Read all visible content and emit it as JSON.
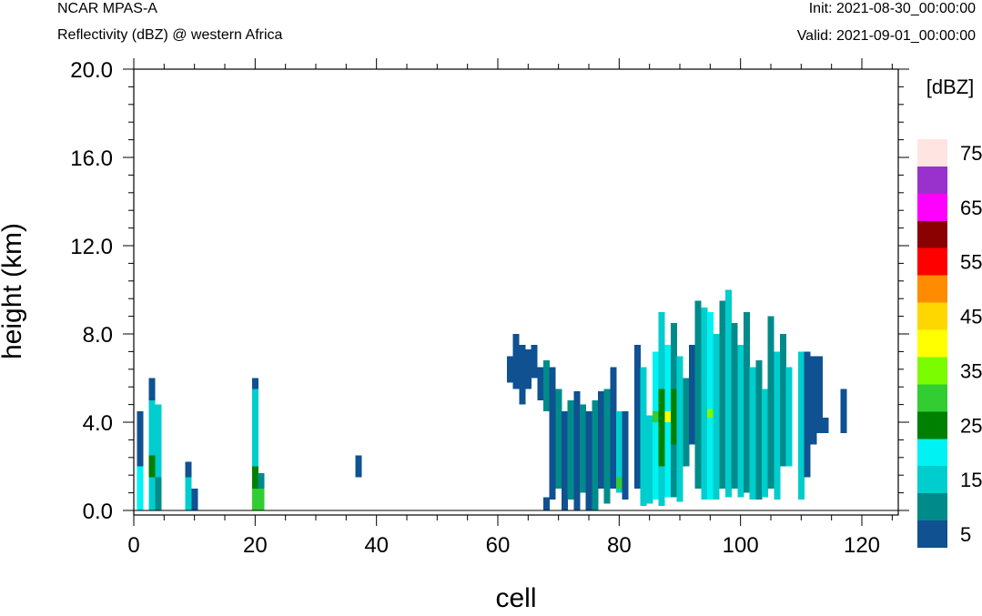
{
  "header": {
    "model": "NCAR MPAS-A",
    "field": "Reflectivity (dBZ) @ western Africa",
    "init": "Init: 2021-08-30_00:00:00",
    "valid": "Valid: 2021-09-01_00:00:00"
  },
  "chart_data": {
    "type": "heatmap",
    "xlabel": "cell",
    "ylabel": "height (km)",
    "xlim": [
      0,
      126
    ],
    "ylim": [
      -0.25,
      20.0
    ],
    "x_ticks": [
      0,
      20,
      40,
      60,
      80,
      100,
      120
    ],
    "x_tick_labels": [
      "0",
      "20",
      "40",
      "60",
      "80",
      "100",
      "120"
    ],
    "y_ticks": [
      0,
      4,
      8,
      12,
      16,
      20
    ],
    "y_tick_labels": [
      "0.0",
      "4.0",
      "8.0",
      "12.0",
      "16.0",
      "20.0"
    ],
    "colorbar": {
      "title": "[dBZ]",
      "levels": [
        5,
        10,
        15,
        20,
        25,
        30,
        35,
        40,
        45,
        50,
        55,
        60,
        65,
        70,
        75
      ],
      "labels": [
        "5",
        "15",
        "25",
        "35",
        "45",
        "55",
        "65",
        "75"
      ],
      "colors": [
        "#0f5191",
        "#008b8b",
        "#00cdcd",
        "#00f2f2",
        "#008000",
        "#32cd32",
        "#7cfc00",
        "#ffff00",
        "#ffd700",
        "#ff8c00",
        "#ff0000",
        "#8b0000",
        "#ff00ff",
        "#9932cc",
        "#ffe4e1"
      ]
    },
    "cells": [
      [
        1,
        0,
        2,
        20
      ],
      [
        1,
        2,
        4.5,
        5
      ],
      [
        3,
        0,
        1.5,
        15
      ],
      [
        3,
        1.5,
        2.5,
        25
      ],
      [
        3,
        2.5,
        5.0,
        15
      ],
      [
        3,
        5.0,
        6.0,
        5
      ],
      [
        4,
        0,
        1.5,
        10
      ],
      [
        4,
        1.5,
        4.8,
        15
      ],
      [
        9,
        0,
        1.5,
        15
      ],
      [
        9,
        1.5,
        2.2,
        5
      ],
      [
        10,
        0,
        1.0,
        5
      ],
      [
        20,
        0,
        1.0,
        30
      ],
      [
        20,
        1.0,
        2.0,
        25
      ],
      [
        20,
        2.0,
        5.5,
        15
      ],
      [
        20,
        5.5,
        6.0,
        5
      ],
      [
        21,
        0,
        1.0,
        30
      ],
      [
        21,
        1.0,
        1.7,
        10
      ],
      [
        37,
        1.5,
        2.5,
        5
      ],
      [
        62,
        5.8,
        7.0,
        5
      ],
      [
        63,
        5.5,
        8.0,
        5
      ],
      [
        64,
        4.8,
        7.5,
        5
      ],
      [
        65,
        5.5,
        7.3,
        5
      ],
      [
        66,
        6.0,
        7.5,
        5
      ],
      [
        67,
        5.0,
        6.5,
        5
      ],
      [
        68,
        4.5,
        6.8,
        10
      ],
      [
        68,
        0,
        0.6,
        5
      ],
      [
        69,
        4.0,
        6.5,
        5
      ],
      [
        69,
        0.5,
        4.5,
        5
      ],
      [
        70,
        1.0,
        5.5,
        10
      ],
      [
        71,
        0,
        4.5,
        5
      ],
      [
        72,
        0.5,
        5.0,
        10
      ],
      [
        73,
        0,
        5.4,
        5
      ],
      [
        74,
        0.8,
        4.8,
        10
      ],
      [
        75,
        0,
        4.5,
        5
      ],
      [
        76,
        0,
        5.0,
        10
      ],
      [
        77,
        1.0,
        5.4,
        5
      ],
      [
        78,
        0.3,
        5.5,
        10
      ],
      [
        79,
        1.0,
        6.5,
        5
      ],
      [
        80,
        0.8,
        4.5,
        15
      ],
      [
        80,
        1.0,
        1.5,
        30
      ],
      [
        81,
        0.5,
        4.5,
        5
      ],
      [
        83,
        1.0,
        7.5,
        5
      ],
      [
        84,
        0.2,
        6.5,
        15
      ],
      [
        85,
        0.3,
        4.3,
        15
      ],
      [
        86,
        0.5,
        7.2,
        20
      ],
      [
        86,
        4.0,
        4.5,
        30
      ],
      [
        87,
        0.2,
        9.0,
        15
      ],
      [
        87,
        2.0,
        5.5,
        25
      ],
      [
        88,
        0.6,
        7.5,
        20
      ],
      [
        88,
        4.0,
        4.5,
        40
      ],
      [
        89,
        0.6,
        8.5,
        10
      ],
      [
        89,
        3.0,
        5.5,
        25
      ],
      [
        90,
        0.4,
        7.0,
        15
      ],
      [
        91,
        2.0,
        6.0,
        10
      ],
      [
        92,
        3.0,
        7.5,
        5
      ],
      [
        93,
        1.0,
        9.5,
        10
      ],
      [
        94,
        0.5,
        9.2,
        15
      ],
      [
        95,
        0.5,
        9.0,
        20
      ],
      [
        95,
        4.2,
        4.6,
        35
      ],
      [
        96,
        0.5,
        8.0,
        15
      ],
      [
        97,
        1.0,
        9.5,
        10
      ],
      [
        98,
        0.6,
        10.0,
        15
      ],
      [
        99,
        1.0,
        8.5,
        10
      ],
      [
        100,
        0.6,
        7.5,
        15
      ],
      [
        101,
        0.8,
        9.0,
        10
      ],
      [
        102,
        0.5,
        6.5,
        15
      ],
      [
        103,
        0.5,
        6.8,
        10
      ],
      [
        104,
        0.6,
        5.5,
        15
      ],
      [
        105,
        1.0,
        8.8,
        10
      ],
      [
        106,
        0.5,
        7.2,
        15
      ],
      [
        107,
        2.0,
        8.0,
        10
      ],
      [
        108,
        2.0,
        6.5,
        15
      ],
      [
        110,
        0.5,
        7.2,
        15
      ],
      [
        111,
        1.5,
        7.2,
        5
      ],
      [
        112,
        3.0,
        7.0,
        5
      ],
      [
        113,
        3.5,
        7.0,
        5
      ],
      [
        114,
        3.5,
        4.2,
        5
      ],
      [
        117,
        3.5,
        5.5,
        5
      ]
    ]
  }
}
